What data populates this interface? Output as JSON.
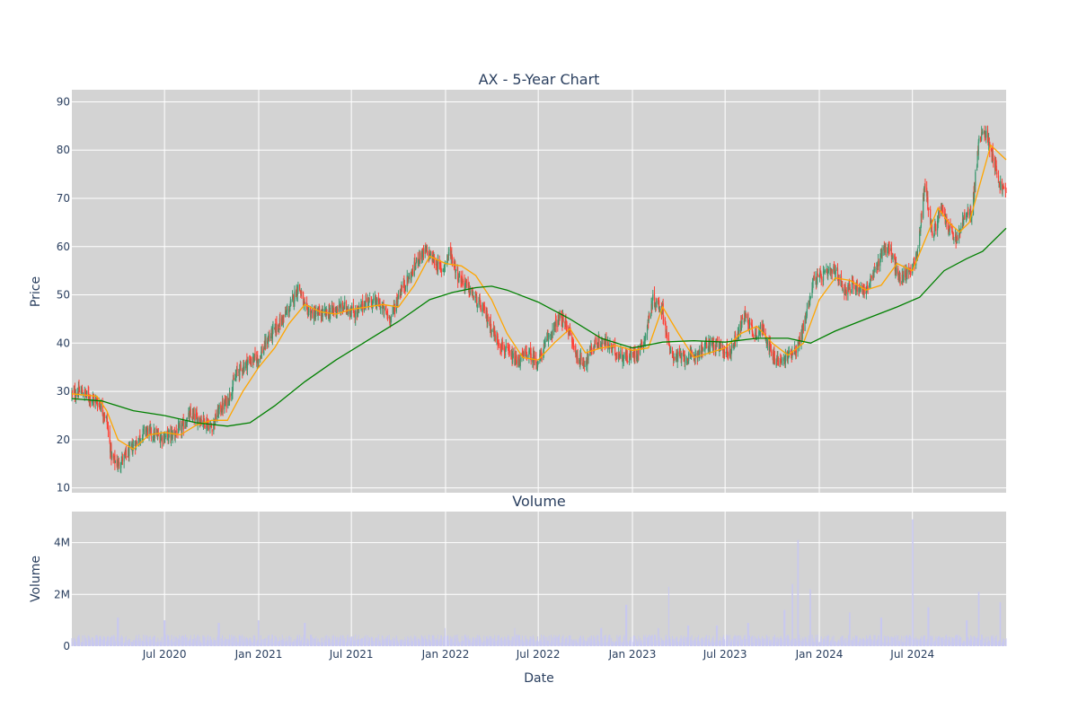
{
  "chart_data": [
    {
      "type": "candlestick",
      "title": "AX - 5-Year Chart",
      "ylabel": "Price",
      "xlabel": "",
      "ylim": [
        9,
        92.5
      ],
      "x_range": [
        "2020-01-02",
        "2024-12-31"
      ],
      "y_ticks": [
        10,
        20,
        30,
        40,
        50,
        60,
        70,
        80,
        90
      ],
      "x_tick_dates": [
        "2020-07-01",
        "2021-01-01",
        "2021-07-01",
        "2022-01-01",
        "2022-07-01",
        "2023-01-01",
        "2023-07-01",
        "2024-01-01",
        "2024-07-01"
      ],
      "grid": true,
      "background": "#d3d3d3",
      "increasing_color": "#3d9970",
      "decreasing_color": "#ff4136",
      "close_path": [
        [
          "2020-01-02",
          29.5
        ],
        [
          "2020-01-20",
          30
        ],
        [
          "2020-02-10",
          28.5
        ],
        [
          "2020-02-25",
          27.5
        ],
        [
          "2020-03-10",
          24
        ],
        [
          "2020-03-20",
          16
        ],
        [
          "2020-04-01",
          15
        ],
        [
          "2020-04-20",
          17
        ],
        [
          "2020-05-10",
          20
        ],
        [
          "2020-05-25",
          22
        ],
        [
          "2020-06-10",
          21
        ],
        [
          "2020-06-25",
          20.5
        ],
        [
          "2020-07-15",
          21
        ],
        [
          "2020-08-01",
          22
        ],
        [
          "2020-08-20",
          25
        ],
        [
          "2020-09-15",
          24
        ],
        [
          "2020-10-01",
          22.5
        ],
        [
          "2020-10-15",
          26
        ],
        [
          "2020-11-01",
          28
        ],
        [
          "2020-11-20",
          34
        ],
        [
          "2020-12-10",
          36
        ],
        [
          "2021-01-01",
          37
        ],
        [
          "2021-01-20",
          41
        ],
        [
          "2021-02-10",
          44
        ],
        [
          "2021-03-01",
          47
        ],
        [
          "2021-03-20",
          52
        ],
        [
          "2021-04-01",
          47
        ],
        [
          "2021-04-20",
          46
        ],
        [
          "2021-05-10",
          46
        ],
        [
          "2021-06-01",
          47
        ],
        [
          "2021-06-20",
          47.5
        ],
        [
          "2021-07-10",
          46
        ],
        [
          "2021-08-01",
          49
        ],
        [
          "2021-08-25",
          48
        ],
        [
          "2021-09-15",
          45
        ],
        [
          "2021-10-05",
          51
        ],
        [
          "2021-10-25",
          54
        ],
        [
          "2021-11-10",
          58
        ],
        [
          "2021-11-25",
          59
        ],
        [
          "2021-12-10",
          57
        ],
        [
          "2021-12-25",
          55
        ],
        [
          "2022-01-10",
          59
        ],
        [
          "2022-01-25",
          54
        ],
        [
          "2022-02-10",
          52
        ],
        [
          "2022-03-01",
          49
        ],
        [
          "2022-03-20",
          46
        ],
        [
          "2022-04-10",
          41
        ],
        [
          "2022-05-01",
          38
        ],
        [
          "2022-05-20",
          36
        ],
        [
          "2022-06-10",
          38
        ],
        [
          "2022-07-01",
          36
        ],
        [
          "2022-07-20",
          41
        ],
        [
          "2022-08-10",
          45
        ],
        [
          "2022-08-25",
          44
        ],
        [
          "2022-09-15",
          37
        ],
        [
          "2022-10-01",
          36
        ],
        [
          "2022-10-20",
          40
        ],
        [
          "2022-11-10",
          40
        ],
        [
          "2022-12-01",
          38
        ],
        [
          "2022-12-20",
          37
        ],
        [
          "2023-01-10",
          38
        ],
        [
          "2023-01-25",
          41
        ],
        [
          "2023-02-10",
          49
        ],
        [
          "2023-03-01",
          47
        ],
        [
          "2023-03-15",
          38
        ],
        [
          "2023-04-01",
          37
        ],
        [
          "2023-04-25",
          37
        ],
        [
          "2023-05-10",
          38
        ],
        [
          "2023-06-01",
          40
        ],
        [
          "2023-06-20",
          39
        ],
        [
          "2023-07-10",
          38
        ],
        [
          "2023-07-25",
          42
        ],
        [
          "2023-08-10",
          46
        ],
        [
          "2023-08-25",
          42
        ],
        [
          "2023-09-15",
          43
        ],
        [
          "2023-10-01",
          37
        ],
        [
          "2023-10-20",
          36
        ],
        [
          "2023-11-05",
          38
        ],
        [
          "2023-11-20",
          39
        ],
        [
          "2023-12-05",
          45
        ],
        [
          "2023-12-20",
          53
        ],
        [
          "2024-01-10",
          54
        ],
        [
          "2024-02-01",
          55
        ],
        [
          "2024-02-20",
          51
        ],
        [
          "2024-03-10",
          52
        ],
        [
          "2024-04-01",
          51
        ],
        [
          "2024-04-20",
          55
        ],
        [
          "2024-05-05",
          60
        ],
        [
          "2024-05-20",
          59
        ],
        [
          "2024-06-05",
          53
        ],
        [
          "2024-06-25",
          55
        ],
        [
          "2024-07-10",
          58
        ],
        [
          "2024-07-25",
          73
        ],
        [
          "2024-08-10",
          62
        ],
        [
          "2024-08-25",
          68
        ],
        [
          "2024-09-10",
          64
        ],
        [
          "2024-09-25",
          61
        ],
        [
          "2024-10-10",
          66
        ],
        [
          "2024-10-25",
          67
        ],
        [
          "2024-11-08",
          82
        ],
        [
          "2024-11-20",
          84
        ],
        [
          "2024-12-05",
          79
        ],
        [
          "2024-12-18",
          73
        ],
        [
          "2024-12-31",
          71
        ]
      ],
      "series": [
        {
          "color": "#ffa500",
          "values": [
            [
              "2020-01-02",
              29.5
            ],
            [
              "2020-02-20",
              29
            ],
            [
              "2020-03-10",
              26
            ],
            [
              "2020-04-01",
              20
            ],
            [
              "2020-05-01",
              18
            ],
            [
              "2020-06-01",
              21
            ],
            [
              "2020-07-01",
              21.5
            ],
            [
              "2020-08-01",
              21
            ],
            [
              "2020-09-01",
              23
            ],
            [
              "2020-10-01",
              24
            ],
            [
              "2020-11-01",
              24
            ],
            [
              "2020-12-01",
              30
            ],
            [
              "2021-01-01",
              35
            ],
            [
              "2021-02-01",
              39
            ],
            [
              "2021-03-01",
              44
            ],
            [
              "2021-04-01",
              48
            ],
            [
              "2021-05-01",
              46.5
            ],
            [
              "2021-06-01",
              46
            ],
            [
              "2021-07-01",
              47
            ],
            [
              "2021-08-01",
              47.5
            ],
            [
              "2021-09-01",
              48
            ],
            [
              "2021-10-01",
              47.5
            ],
            [
              "2021-11-01",
              52
            ],
            [
              "2021-12-01",
              58
            ],
            [
              "2022-01-01",
              56.5
            ],
            [
              "2022-02-01",
              56
            ],
            [
              "2022-03-01",
              54
            ],
            [
              "2022-04-01",
              49
            ],
            [
              "2022-05-01",
              42
            ],
            [
              "2022-06-01",
              37
            ],
            [
              "2022-07-01",
              36.5
            ],
            [
              "2022-08-01",
              40
            ],
            [
              "2022-09-01",
              43
            ],
            [
              "2022-10-01",
              38
            ],
            [
              "2022-11-01",
              39
            ],
            [
              "2022-12-01",
              39.5
            ],
            [
              "2023-01-01",
              38.5
            ],
            [
              "2023-02-01",
              39
            ],
            [
              "2023-03-01",
              47.5
            ],
            [
              "2023-04-01",
              42
            ],
            [
              "2023-05-01",
              37
            ],
            [
              "2023-06-01",
              38
            ],
            [
              "2023-07-01",
              39
            ],
            [
              "2023-08-01",
              42
            ],
            [
              "2023-09-01",
              43.5
            ],
            [
              "2023-10-01",
              40
            ],
            [
              "2023-11-01",
              37.5
            ],
            [
              "2023-12-01",
              40
            ],
            [
              "2024-01-01",
              49
            ],
            [
              "2024-02-01",
              53.5
            ],
            [
              "2024-03-01",
              53
            ],
            [
              "2024-04-01",
              51
            ],
            [
              "2024-05-01",
              52
            ],
            [
              "2024-06-01",
              56.5
            ],
            [
              "2024-07-01",
              55
            ],
            [
              "2024-08-01",
              63
            ],
            [
              "2024-08-20",
              68
            ],
            [
              "2024-09-10",
              65
            ],
            [
              "2024-10-01",
              63
            ],
            [
              "2024-10-20",
              65
            ],
            [
              "2024-11-10",
              73
            ],
            [
              "2024-12-01",
              81
            ],
            [
              "2024-12-31",
              78
            ]
          ]
        },
        {
          "color": "#008000",
          "values": [
            [
              "2020-01-02",
              28.5
            ],
            [
              "2020-03-01",
              28
            ],
            [
              "2020-05-01",
              26
            ],
            [
              "2020-07-01",
              25
            ],
            [
              "2020-09-01",
              23.5
            ],
            [
              "2020-11-01",
              22.8
            ],
            [
              "2020-12-15",
              23.5
            ],
            [
              "2021-02-01",
              27
            ],
            [
              "2021-04-01",
              32
            ],
            [
              "2021-06-01",
              36.5
            ],
            [
              "2021-08-01",
              40.5
            ],
            [
              "2021-10-01",
              44.5
            ],
            [
              "2021-12-01",
              49
            ],
            [
              "2022-01-15",
              50.5
            ],
            [
              "2022-03-01",
              51.5
            ],
            [
              "2022-04-01",
              51.8
            ],
            [
              "2022-05-01",
              51
            ],
            [
              "2022-07-01",
              48.5
            ],
            [
              "2022-09-01",
              45
            ],
            [
              "2022-11-01",
              41
            ],
            [
              "2023-01-01",
              39
            ],
            [
              "2023-03-01",
              40.2
            ],
            [
              "2023-05-01",
              40.5
            ],
            [
              "2023-07-01",
              40.2
            ],
            [
              "2023-09-01",
              41
            ],
            [
              "2023-11-01",
              41
            ],
            [
              "2023-12-15",
              40
            ],
            [
              "2024-02-01",
              42.5
            ],
            [
              "2024-04-01",
              45
            ],
            [
              "2024-06-01",
              47.5
            ],
            [
              "2024-07-15",
              49.5
            ],
            [
              "2024-09-01",
              55
            ],
            [
              "2024-10-15",
              57.5
            ],
            [
              "2024-11-15",
              59
            ],
            [
              "2024-12-31",
              63.8
            ]
          ]
        }
      ]
    },
    {
      "type": "bar",
      "title": "Volume",
      "ylabel": "Volume",
      "xlabel": "Date",
      "ylim": [
        0,
        5200000
      ],
      "y_ticks": [
        0,
        2000000,
        4000000
      ],
      "y_tick_labels": [
        "0",
        "2M",
        "4M"
      ],
      "x_tick_labels": [
        "Jul 2020",
        "Jan 2021",
        "Jul 2021",
        "Jan 2022",
        "Jul 2022",
        "Jan 2023",
        "Jul 2023",
        "Jan 2024",
        "Jul 2024"
      ],
      "bar_color": "#c8c8f0",
      "baseline_volume": 300000,
      "spikes": [
        [
          "2020-04-01",
          1100000
        ],
        [
          "2020-07-01",
          1000000
        ],
        [
          "2020-10-15",
          900000
        ],
        [
          "2021-01-01",
          1000000
        ],
        [
          "2021-04-01",
          900000
        ],
        [
          "2022-01-01",
          700000
        ],
        [
          "2022-05-15",
          700000
        ],
        [
          "2022-11-01",
          700000
        ],
        [
          "2022-12-20",
          1600000
        ],
        [
          "2023-02-20",
          700000
        ],
        [
          "2023-03-12",
          2300000
        ],
        [
          "2023-04-20",
          800000
        ],
        [
          "2023-06-15",
          800000
        ],
        [
          "2023-08-15",
          900000
        ],
        [
          "2023-10-25",
          1400000
        ],
        [
          "2023-11-10",
          2400000
        ],
        [
          "2023-11-20",
          4100000
        ],
        [
          "2023-12-15",
          2200000
        ],
        [
          "2024-03-01",
          1300000
        ],
        [
          "2024-05-01",
          1100000
        ],
        [
          "2024-07-01",
          4900000
        ],
        [
          "2024-08-01",
          1500000
        ],
        [
          "2024-10-15",
          1000000
        ],
        [
          "2024-11-08",
          2100000
        ],
        [
          "2024-12-20",
          1700000
        ]
      ]
    }
  ]
}
